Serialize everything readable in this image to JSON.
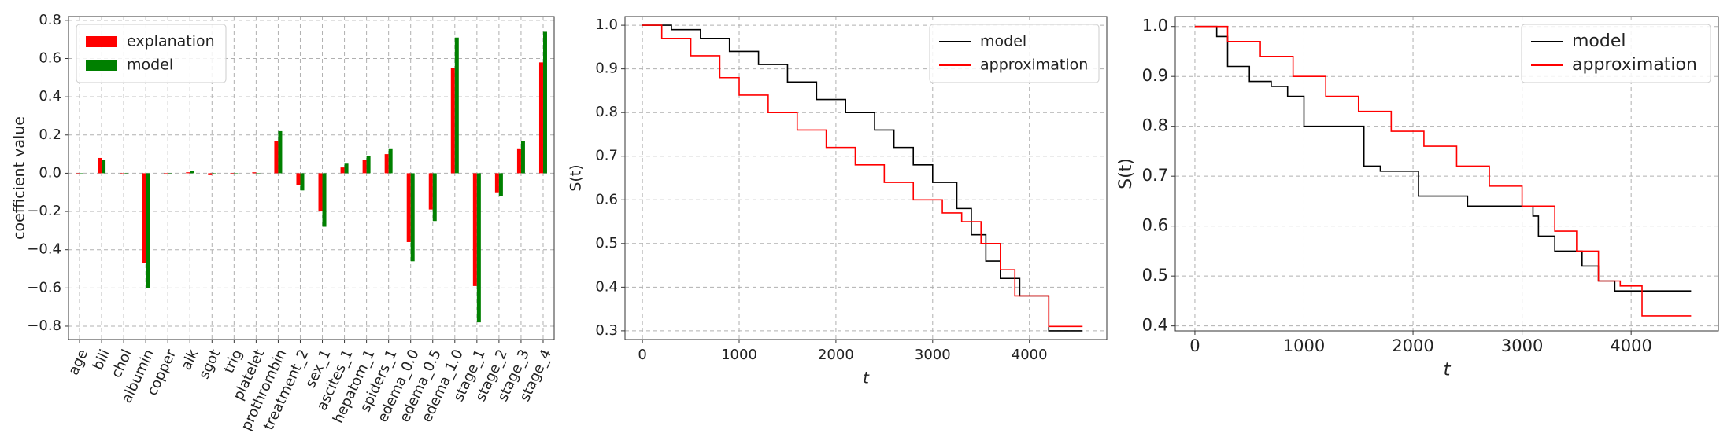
{
  "chart_data": [
    {
      "type": "bar",
      "ylabel": "coefficient value",
      "categories": [
        "age",
        "bili",
        "chol",
        "albumin",
        "copper",
        "alk",
        "sgot",
        "trig",
        "platelet",
        "prothrombin",
        "treatment_2",
        "sex_1",
        "ascites_1",
        "hepatom_1",
        "spiders_1",
        "edema_0.0",
        "edema_0.5",
        "edema_1.0",
        "stage_1",
        "stage_2",
        "stage_3",
        "stage_4"
      ],
      "series": [
        {
          "name": "explanation",
          "color": "#ff0000",
          "values": [
            0.0,
            0.08,
            0.0,
            -0.47,
            -0.005,
            0.005,
            -0.01,
            -0.005,
            0.005,
            0.17,
            -0.06,
            -0.2,
            0.03,
            0.07,
            0.1,
            -0.36,
            -0.19,
            0.55,
            -0.59,
            -0.1,
            0.13,
            0.58
          ]
        },
        {
          "name": "model",
          "color": "#008000",
          "values": [
            0.0,
            0.07,
            0.0,
            -0.6,
            0.0,
            0.01,
            0.0,
            0.0,
            0.0,
            0.22,
            -0.09,
            -0.28,
            0.05,
            0.09,
            0.13,
            -0.46,
            -0.25,
            0.71,
            -0.78,
            -0.12,
            0.17,
            0.74
          ]
        }
      ],
      "ylim": [
        -0.87,
        0.82
      ],
      "yticks": [
        {
          "value": -0.8,
          "label": "−0.8"
        },
        {
          "value": -0.6,
          "label": "−0.6"
        },
        {
          "value": -0.4,
          "label": "−0.4"
        },
        {
          "value": -0.2,
          "label": "−0.2"
        },
        {
          "value": 0,
          "label": "0.0"
        },
        0.2,
        0.4,
        0.6,
        0.8
      ],
      "grid": true,
      "legend": "upper left"
    },
    {
      "type": "line",
      "drawstyle": "steps-post",
      "xlabel": "t",
      "ylabel": "S(t)",
      "series": [
        {
          "name": "model",
          "color": "#000000",
          "x": [
            0,
            300,
            600,
            900,
            1200,
            1500,
            1800,
            2100,
            2400,
            2600,
            2800,
            3000,
            3250,
            3400,
            3550,
            3700,
            3900,
            4200,
            4550
          ],
          "values": [
            1.0,
            0.99,
            0.97,
            0.94,
            0.91,
            0.87,
            0.83,
            0.8,
            0.76,
            0.72,
            0.68,
            0.64,
            0.58,
            0.52,
            0.46,
            0.42,
            0.38,
            0.3,
            0.3
          ]
        },
        {
          "name": "approximation",
          "color": "#ff0000",
          "x": [
            0,
            200,
            500,
            800,
            1000,
            1300,
            1600,
            1900,
            2200,
            2500,
            2800,
            3100,
            3300,
            3500,
            3700,
            3850,
            4200,
            4550
          ],
          "values": [
            1.0,
            0.97,
            0.93,
            0.88,
            0.84,
            0.8,
            0.76,
            0.72,
            0.68,
            0.64,
            0.6,
            0.57,
            0.55,
            0.5,
            0.44,
            0.38,
            0.31,
            0.31
          ]
        }
      ],
      "xlim": [
        -180,
        4800
      ],
      "xticks": [
        0,
        1000,
        2000,
        3000,
        4000
      ],
      "ylim": [
        0.28,
        1.02
      ],
      "yticks": [
        0.3,
        0.4,
        0.5,
        0.6,
        0.7,
        0.8,
        0.9,
        {
          "value": 1,
          "label": "1.0"
        }
      ],
      "grid": true,
      "legend": "upper right"
    },
    {
      "type": "line",
      "drawstyle": "steps-post",
      "xlabel": "t",
      "ylabel": "S(t)",
      "series": [
        {
          "name": "model",
          "color": "#000000",
          "x": [
            0,
            200,
            300,
            500,
            700,
            850,
            1000,
            1300,
            1550,
            1700,
            2050,
            2500,
            3100,
            3150,
            3300,
            3550,
            3700,
            3850,
            4550
          ],
          "values": [
            1.0,
            0.98,
            0.92,
            0.89,
            0.88,
            0.86,
            0.8,
            0.8,
            0.72,
            0.71,
            0.66,
            0.64,
            0.62,
            0.58,
            0.55,
            0.52,
            0.49,
            0.47,
            0.47
          ]
        },
        {
          "name": "approximation",
          "color": "#ff0000",
          "x": [
            0,
            300,
            600,
            900,
            1200,
            1500,
            1800,
            2100,
            2400,
            2700,
            3000,
            3300,
            3500,
            3700,
            3900,
            4100,
            4550
          ],
          "values": [
            1.0,
            0.97,
            0.94,
            0.9,
            0.86,
            0.83,
            0.79,
            0.76,
            0.72,
            0.68,
            0.64,
            0.59,
            0.55,
            0.49,
            0.48,
            0.42,
            0.42
          ]
        }
      ],
      "xlim": [
        -180,
        4800
      ],
      "xticks": [
        0,
        1000,
        2000,
        3000,
        4000
      ],
      "ylim": [
        0.39,
        1.02
      ],
      "yticks": [
        0.4,
        0.5,
        0.6,
        0.7,
        0.8,
        0.9,
        {
          "value": 1,
          "label": "1.0"
        }
      ],
      "grid": true,
      "legend": "upper right"
    }
  ]
}
